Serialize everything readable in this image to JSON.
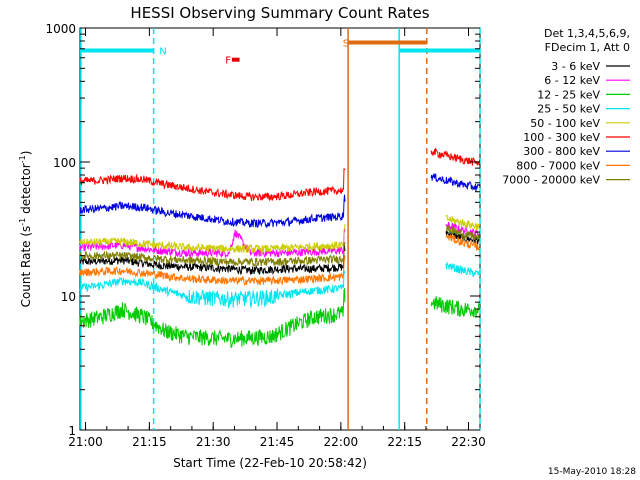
{
  "colors": {
    "background": "#ffffff",
    "axis": "#000000",
    "flag_eclipse": "#00e5ee",
    "flag_saa": "#e06a10",
    "flag_flare": "#e00000"
  },
  "chart_data": {
    "type": "line",
    "title": "HESSI Observing Summary Count Rates",
    "xlabel": "Start Time (22-Feb-10 20:58:42)",
    "ylabel": "Count Rate (s⁻¹ detector⁻¹)",
    "ylabel_parts": {
      "before": "Count Rate (s",
      "sup1": "-1",
      "middle": " detector",
      "sup2": "-1",
      "after": ")"
    },
    "y_scale": "log",
    "ylim": [
      1,
      1000
    ],
    "xlim_minutes": [
      0,
      94
    ],
    "x_ticks": [
      {
        "label": "21:00",
        "minute": 1.3
      },
      {
        "label": "21:15",
        "minute": 16.3
      },
      {
        "label": "21:30",
        "minute": 31.3
      },
      {
        "label": "21:45",
        "minute": 46.3
      },
      {
        "label": "22:00",
        "minute": 61.3
      },
      {
        "label": "22:15",
        "minute": 76.3
      },
      {
        "label": "22:30",
        "minute": 91.3
      }
    ],
    "y_ticks": [
      {
        "label": "1",
        "value": 1
      },
      {
        "label": "10",
        "value": 10
      },
      {
        "label": "100",
        "value": 100
      },
      {
        "label": "1000",
        "value": 1000
      }
    ],
    "legend_header": [
      "Det 1,3,4,5,6,9,",
      "FDecim 1, Att 0"
    ],
    "series": [
      {
        "name": "3 - 6 keV",
        "color": "#000000",
        "x": [
          0,
          10,
          18,
          25,
          35,
          40,
          48,
          55,
          62.3,
          81.5,
          86,
          90,
          94
        ],
        "y": [
          18,
          18.5,
          17,
          16.5,
          16,
          15.5,
          16,
          16,
          16.5,
          null,
          30,
          27,
          26
        ]
      },
      {
        "name": "6 - 12 keV",
        "color": "#ff00ff",
        "x": [
          0,
          10,
          18,
          25,
          35,
          36.5,
          40,
          48,
          55,
          62.3,
          81.5,
          86,
          90,
          94
        ],
        "y": [
          23,
          24,
          22,
          21,
          21,
          30,
          21,
          21,
          21.5,
          22,
          null,
          34,
          31,
          29
        ]
      },
      {
        "name": "12 - 25 keV",
        "color": "#00cc00",
        "x": [
          0,
          5,
          10,
          15,
          20,
          25,
          35,
          45,
          50,
          55,
          62.3,
          81.5,
          82.5,
          86,
          90,
          94
        ],
        "y": [
          6.5,
          7,
          8,
          7,
          5.5,
          5,
          4.8,
          5,
          6,
          7,
          7.5,
          null,
          9,
          8.5,
          8,
          8
        ]
      },
      {
        "name": "25 - 50 keV",
        "color": "#00e5ee",
        "x": [
          0,
          5,
          10,
          15,
          20,
          25,
          35,
          45,
          50,
          55,
          62.3,
          81.5,
          86,
          90,
          94
        ],
        "y": [
          11.5,
          12,
          13,
          12.5,
          11,
          10,
          9.5,
          9.8,
          10.5,
          11,
          11.5,
          null,
          17,
          15.5,
          14.5
        ]
      },
      {
        "name": "50 - 100 keV",
        "color": "#cccc00",
        "x": [
          0,
          10,
          18,
          25,
          35,
          45,
          55,
          62.3,
          81.5,
          86,
          90,
          94
        ],
        "y": [
          25,
          25.5,
          24,
          23,
          22.5,
          22.5,
          23.5,
          24,
          null,
          38,
          35,
          33
        ]
      },
      {
        "name": "100 - 300 keV",
        "color": "#ff0000",
        "x": [
          0,
          5,
          10,
          15,
          20,
          25,
          30,
          35,
          40,
          45,
          50,
          55,
          60,
          62.3,
          81.5,
          82.5,
          86,
          90,
          94
        ],
        "y": [
          72,
          73,
          76,
          74,
          68,
          64,
          60,
          57,
          55,
          55,
          57,
          60,
          61,
          62,
          null,
          120,
          112,
          104,
          98
        ]
      },
      {
        "name": "300 - 800 keV",
        "color": "#0000dd",
        "x": [
          0,
          5,
          10,
          15,
          20,
          25,
          30,
          35,
          40,
          45,
          50,
          55,
          60,
          62.3,
          81.5,
          82.5,
          86,
          90,
          94
        ],
        "y": [
          44,
          45,
          47,
          46,
          42,
          40,
          38,
          36,
          35,
          35,
          36,
          38,
          39,
          40,
          null,
          78,
          73,
          68,
          64
        ]
      },
      {
        "name": "800 - 7000 keV",
        "color": "#ff7700",
        "x": [
          0,
          10,
          18,
          25,
          35,
          45,
          55,
          62.3,
          81.5,
          86,
          90,
          94
        ],
        "y": [
          15,
          15.5,
          14.5,
          13.5,
          13,
          13,
          13.5,
          14,
          null,
          28,
          25,
          23
        ]
      },
      {
        "name": "7000 - 20000 keV",
        "color": "#808000",
        "x": [
          0,
          10,
          18,
          25,
          35,
          45,
          55,
          62.3,
          81.5,
          86,
          90,
          94
        ],
        "y": [
          20,
          20,
          19,
          18.5,
          18,
          18,
          18.5,
          19,
          null,
          32,
          29,
          27
        ]
      }
    ],
    "flags": [
      {
        "label": "N",
        "color": "#00e5ee",
        "minute_start": 0,
        "minute_end": 17.3,
        "level": 680
      },
      {
        "label": "N",
        "color": "#00e5ee",
        "minute_start": 75.0,
        "minute_end": 94,
        "level": 680
      },
      {
        "label": "S",
        "color": "#e06a10",
        "minute_start": 63.0,
        "minute_end": 81.5,
        "level": 780
      },
      {
        "label": "F",
        "color": "#e00000",
        "minute_start": 35.7,
        "minute_end": 37.5,
        "level": 580
      }
    ],
    "flag_labels": [
      {
        "label": "N",
        "color": "#00e5ee",
        "minute": 19.5,
        "level": 680
      },
      {
        "label": "S",
        "color": "#e06a10",
        "minute": 62.5,
        "level": 780
      },
      {
        "label": "F",
        "color": "#e00000",
        "minute": 34.8,
        "level": 580
      }
    ],
    "vertical_markers": [
      {
        "minute": 0.2,
        "color": "#00e5ee",
        "style": "solid"
      },
      {
        "minute": 17.3,
        "color": "#00e5ee",
        "style": "dashed"
      },
      {
        "minute": 63.0,
        "color": "#e06a10",
        "style": "solid"
      },
      {
        "minute": 75.0,
        "color": "#00e5ee",
        "style": "solid"
      },
      {
        "minute": 81.5,
        "color": "#e06a10",
        "style": "dashed"
      },
      {
        "minute": 94.0,
        "color": "#00e5ee",
        "style": "dashed"
      }
    ],
    "spike_minute": 62.3,
    "footer_date": "15-May-2010 18:28",
    "grid": false,
    "legend_placement": "top-right outside"
  }
}
